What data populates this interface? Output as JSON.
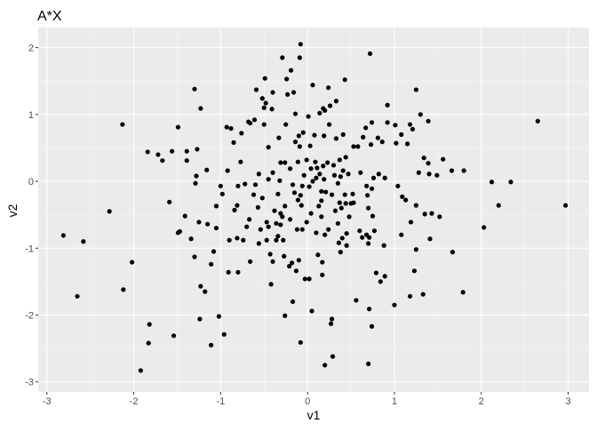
{
  "chart_data": {
    "type": "scatter",
    "title": "A*X",
    "xlabel": "v1",
    "ylabel": "v2",
    "xlim": [
      -3.1,
      3.24
    ],
    "ylim": [
      -3.15,
      2.3
    ],
    "xticks": [
      -3,
      -2,
      -1,
      0,
      1,
      2,
      3
    ],
    "yticks": [
      -3,
      -2,
      -1,
      0,
      1,
      2
    ],
    "xtick_labels": [
      "-3",
      "-2",
      "-1",
      "0",
      "1",
      "2",
      "3"
    ],
    "ytick_labels": [
      "-3",
      "-2",
      "-1",
      "0",
      "1",
      "2"
    ],
    "grid": true,
    "legend": "none",
    "colors": {
      "panel": "#EBEBEB",
      "grid": "#FFFFFF",
      "point": "#000000",
      "tick_text": "#4D4D4D"
    },
    "points": [
      [
        -2.81,
        -0.81
      ],
      [
        -2.58,
        -0.9
      ],
      [
        -2.65,
        -1.72
      ],
      [
        -2.28,
        -0.45
      ],
      [
        -2.13,
        0.85
      ],
      [
        -2.12,
        -1.62
      ],
      [
        -2.02,
        -1.21
      ],
      [
        -1.92,
        -2.83
      ],
      [
        -1.84,
        0.44
      ],
      [
        -1.82,
        -2.14
      ],
      [
        -1.83,
        -2.42
      ],
      [
        -1.72,
        0.4
      ],
      [
        -1.67,
        0.31
      ],
      [
        -1.56,
        0.45
      ],
      [
        -1.59,
        -0.31
      ],
      [
        -1.49,
        -0.77
      ],
      [
        -1.47,
        -0.75
      ],
      [
        -1.49,
        0.81
      ],
      [
        -1.54,
        -2.31
      ],
      [
        -1.41,
        -0.52
      ],
      [
        -1.39,
        0.31
      ],
      [
        -1.39,
        0.45
      ],
      [
        -1.34,
        -0.86
      ],
      [
        -1.3,
        1.38
      ],
      [
        -1.29,
        -0.03
      ],
      [
        -1.28,
        0.08
      ],
      [
        -1.27,
        0.48
      ],
      [
        -1.23,
        1.09
      ],
      [
        -1.25,
        -0.61
      ],
      [
        -1.3,
        -1.13
      ],
      [
        -1.23,
        -1.57
      ],
      [
        -1.24,
        -2.06
      ],
      [
        -1.18,
        -1.65
      ],
      [
        -1.16,
        0.17
      ],
      [
        -1.15,
        -0.64
      ],
      [
        -1.08,
        -1.05
      ],
      [
        -1.11,
        -1.24
      ],
      [
        -1.11,
        -2.45
      ],
      [
        -1.05,
        -0.7
      ],
      [
        -1.05,
        -0.37
      ],
      [
        -1.02,
        -2.02
      ],
      [
        -1.0,
        -0.07
      ],
      [
        -0.98,
        -0.19
      ],
      [
        -0.96,
        -2.29
      ],
      [
        -0.91,
        -1.36
      ],
      [
        -0.9,
        -0.88
      ],
      [
        -0.93,
        0.81
      ],
      [
        -0.88,
        0.79
      ],
      [
        -0.92,
        0.16
      ],
      [
        -0.85,
        0.58
      ],
      [
        -0.84,
        -0.43
      ],
      [
        -0.81,
        -0.36
      ],
      [
        -0.81,
        -0.85
      ],
      [
        -0.8,
        -1.36
      ],
      [
        -0.77,
        0.29
      ],
      [
        -0.8,
        -0.07
      ],
      [
        -0.74,
        -0.88
      ],
      [
        -0.76,
        0.72
      ],
      [
        -0.72,
        -0.04
      ],
      [
        -0.7,
        -0.68
      ],
      [
        -0.68,
        0.89
      ],
      [
        -0.67,
        -0.57
      ],
      [
        -0.66,
        0.87
      ],
      [
        -0.66,
        -1.2
      ],
      [
        -0.62,
        -0.2
      ],
      [
        -0.6,
        -0.05
      ],
      [
        -0.61,
        0.92
      ],
      [
        -0.59,
        1.37
      ],
      [
        -0.57,
        -0.39
      ],
      [
        -0.54,
        -0.72
      ],
      [
        -0.56,
        0.11
      ],
      [
        -0.56,
        -0.93
      ],
      [
        -0.52,
        -0.25
      ],
      [
        -0.52,
        1.24
      ],
      [
        -0.5,
        0.85
      ],
      [
        -0.5,
        1.1
      ],
      [
        -0.49,
        1.54
      ],
      [
        -0.48,
        1.17
      ],
      [
        -0.47,
        -0.61
      ],
      [
        -0.47,
        -0.88
      ],
      [
        -0.45,
        0.51
      ],
      [
        -0.45,
        0.03
      ],
      [
        -0.45,
        -0.68
      ],
      [
        -0.43,
        -1.09
      ],
      [
        -0.42,
        -1.54
      ],
      [
        -0.4,
        0.13
      ],
      [
        -0.41,
        1.08
      ],
      [
        -0.4,
        1.33
      ],
      [
        -0.4,
        -1.2
      ],
      [
        -0.38,
        -0.44
      ],
      [
        -0.36,
        -0.88
      ],
      [
        -0.36,
        -0.63
      ],
      [
        -0.34,
        -0.82
      ],
      [
        -0.34,
        -0.19
      ],
      [
        -0.33,
        0.65
      ],
      [
        -0.32,
        0.01
      ],
      [
        -0.31,
        0.28
      ],
      [
        -0.31,
        -0.48
      ],
      [
        -0.31,
        -0.65
      ],
      [
        -0.28,
        -0.88
      ],
      [
        -0.29,
        -0.53
      ],
      [
        -0.29,
        1.85
      ],
      [
        -0.27,
        -1.12
      ],
      [
        -0.26,
        0.28
      ],
      [
        -0.26,
        -2.01
      ],
      [
        -0.25,
        0.85
      ],
      [
        -0.26,
        -0.37
      ],
      [
        -0.24,
        1.53
      ],
      [
        -0.23,
        1.3
      ],
      [
        -0.21,
        -1.27
      ],
      [
        -0.2,
        0.19
      ],
      [
        -0.2,
        -0.57
      ],
      [
        -0.19,
        1.66
      ],
      [
        -0.18,
        -1.22
      ],
      [
        -0.17,
        -1.8
      ],
      [
        -0.17,
        -0.05
      ],
      [
        -0.16,
        1.33
      ],
      [
        -0.15,
        -0.17
      ],
      [
        -0.14,
        1.01
      ],
      [
        -0.14,
        0.59
      ],
      [
        -0.13,
        -1.34
      ],
      [
        -0.12,
        -0.72
      ],
      [
        -0.11,
        -0.28
      ],
      [
        -0.11,
        0.29
      ],
      [
        -0.1,
        0.68
      ],
      [
        -0.1,
        -1.18
      ],
      [
        -0.09,
        1.85
      ],
      [
        -0.09,
        0.52
      ],
      [
        -0.08,
        2.05
      ],
      [
        -0.08,
        -2.41
      ],
      [
        -0.08,
        -0.21
      ],
      [
        -0.07,
        -0.36
      ],
      [
        -0.06,
        -0.07
      ],
      [
        -0.06,
        -0.72
      ],
      [
        -0.05,
        0.73
      ],
      [
        -0.04,
        0.09
      ],
      [
        -0.03,
        -1.46
      ],
      [
        -0.01,
        -0.61
      ],
      [
        -0.01,
        0.32
      ],
      [
        0.01,
        0.97
      ],
      [
        0.02,
        -0.08
      ],
      [
        0.02,
        -1.46
      ],
      [
        0.03,
        0.53
      ],
      [
        0.04,
        0.19
      ],
      [
        0.04,
        -0.48
      ],
      [
        0.06,
        1.44
      ],
      [
        0.05,
        -1.94
      ],
      [
        0.06,
        0.0
      ],
      [
        0.08,
        0.69
      ],
      [
        0.09,
        0.29
      ],
      [
        0.1,
        -0.77
      ],
      [
        0.1,
        0.05
      ],
      [
        0.11,
        0.2
      ],
      [
        0.12,
        -1.1
      ],
      [
        0.13,
        -0.37
      ],
      [
        0.14,
        0.11
      ],
      [
        0.14,
        1.02
      ],
      [
        0.16,
        -0.29
      ],
      [
        0.16,
        -0.53
      ],
      [
        0.16,
        -0.15
      ],
      [
        0.17,
        -1.21
      ],
      [
        0.17,
        -1.4
      ],
      [
        0.18,
        1.09
      ],
      [
        0.18,
        0.23
      ],
      [
        0.19,
        0.68
      ],
      [
        0.19,
        0.03
      ],
      [
        0.2,
        1.06
      ],
      [
        0.2,
        -2.75
      ],
      [
        0.2,
        -0.8
      ],
      [
        0.21,
        -0.16
      ],
      [
        0.23,
        0.28
      ],
      [
        0.24,
        1.4
      ],
      [
        0.24,
        -0.72
      ],
      [
        0.25,
        0.85
      ],
      [
        0.26,
        1.13
      ],
      [
        0.27,
        -2.13
      ],
      [
        0.28,
        -0.2
      ],
      [
        0.28,
        -2.06
      ],
      [
        0.29,
        -2.62
      ],
      [
        0.3,
        0.24
      ],
      [
        0.31,
        0.09
      ],
      [
        0.32,
        -0.44
      ],
      [
        0.33,
        1.2
      ],
      [
        0.33,
        0.64
      ],
      [
        0.35,
        -0.63
      ],
      [
        0.35,
        -0.03
      ],
      [
        0.36,
        -0.92
      ],
      [
        0.37,
        0.32
      ],
      [
        0.37,
        -0.32
      ],
      [
        0.38,
        0.07
      ],
      [
        0.38,
        -1.06
      ],
      [
        0.39,
        -0.4
      ],
      [
        0.4,
        -0.85
      ],
      [
        0.41,
        0.16
      ],
      [
        0.41,
        0.7
      ],
      [
        0.43,
        1.52
      ],
      [
        0.43,
        -0.2
      ],
      [
        0.44,
        -0.33
      ],
      [
        0.44,
        0.36
      ],
      [
        0.45,
        -0.78
      ],
      [
        0.45,
        -0.96
      ],
      [
        0.47,
        0.11
      ],
      [
        0.48,
        -0.53
      ],
      [
        0.5,
        -0.33
      ],
      [
        0.52,
        -0.19
      ],
      [
        0.53,
        -0.32
      ],
      [
        0.53,
        0.52
      ],
      [
        0.56,
        -1.78
      ],
      [
        0.58,
        0.52
      ],
      [
        0.6,
        -0.74
      ],
      [
        0.61,
        0.13
      ],
      [
        0.63,
        -0.84
      ],
      [
        0.64,
        0.66
      ],
      [
        0.67,
        0.8
      ],
      [
        0.68,
        -0.07
      ],
      [
        0.69,
        -0.21
      ],
      [
        0.68,
        -0.8
      ],
      [
        0.7,
        -0.4
      ],
      [
        0.7,
        -0.93
      ],
      [
        0.71,
        -1.91
      ],
      [
        0.71,
        -0.84
      ],
      [
        0.72,
        1.91
      ],
      [
        0.73,
        0.55
      ],
      [
        0.74,
        -2.17
      ],
      [
        0.75,
        -0.52
      ],
      [
        0.74,
        0.88
      ],
      [
        0.7,
        -2.73
      ],
      [
        0.74,
        -0.11
      ],
      [
        0.76,
        0.05
      ],
      [
        0.77,
        -0.74
      ],
      [
        0.79,
        -1.37
      ],
      [
        0.81,
        0.65
      ],
      [
        0.82,
        0.11
      ],
      [
        0.84,
        -1.5
      ],
      [
        0.86,
        0.59
      ],
      [
        0.88,
        -0.96
      ],
      [
        0.89,
        -1.42
      ],
      [
        0.89,
        0.05
      ],
      [
        0.92,
        1.14
      ],
      [
        0.92,
        0.88
      ],
      [
        1.0,
        -1.85
      ],
      [
        1.02,
        0.57
      ],
      [
        1.01,
        0.84
      ],
      [
        1.04,
        -0.07
      ],
      [
        1.08,
        0.7
      ],
      [
        1.08,
        -0.8
      ],
      [
        1.09,
        -0.23
      ],
      [
        1.13,
        -0.28
      ],
      [
        1.15,
        0.56
      ],
      [
        1.18,
        -1.72
      ],
      [
        1.18,
        0.85
      ],
      [
        1.19,
        -0.61
      ],
      [
        1.21,
        0.78
      ],
      [
        1.23,
        -1.34
      ],
      [
        1.25,
        1.37
      ],
      [
        1.25,
        -0.36
      ],
      [
        1.25,
        -1.02
      ],
      [
        1.28,
        0.13
      ],
      [
        1.3,
        1.0
      ],
      [
        1.33,
        -1.69
      ],
      [
        1.34,
        0.35
      ],
      [
        1.35,
        -0.49
      ],
      [
        1.39,
        0.9
      ],
      [
        1.39,
        0.27
      ],
      [
        1.4,
        0.11
      ],
      [
        1.41,
        -0.86
      ],
      [
        1.43,
        -0.48
      ],
      [
        1.49,
        0.09
      ],
      [
        1.52,
        -0.53
      ],
      [
        1.56,
        0.33
      ],
      [
        1.67,
        -1.06
      ],
      [
        1.66,
        0.16
      ],
      [
        1.8,
        0.16
      ],
      [
        1.79,
        -1.66
      ],
      [
        2.03,
        -0.69
      ],
      [
        2.12,
        -0.01
      ],
      [
        2.2,
        -0.36
      ],
      [
        2.34,
        -0.01
      ],
      [
        2.65,
        0.9
      ],
      [
        2.97,
        -0.36
      ]
    ]
  }
}
